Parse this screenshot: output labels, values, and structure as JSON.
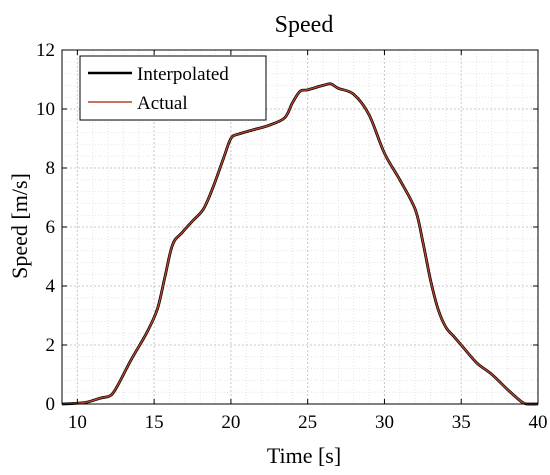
{
  "chart_data": {
    "type": "line",
    "title": "Speed",
    "xlabel": "Time [s]",
    "ylabel": "Speed [m/s]",
    "xlim": [
      9,
      40
    ],
    "ylim": [
      0,
      12
    ],
    "x_ticks": [
      10,
      15,
      20,
      25,
      30,
      35,
      40
    ],
    "y_ticks": [
      0,
      2,
      4,
      6,
      8,
      10,
      12
    ],
    "grid": true,
    "legend_position": "top-left",
    "series": [
      {
        "name": "Interpolated",
        "color": "#000000",
        "x": [
          9,
          10.5,
          11.5,
          12.2,
          12.7,
          13.5,
          14.5,
          15.2,
          15.7,
          16.2,
          16.8,
          17.5,
          18.2,
          18.8,
          19.5,
          20.0,
          20.5,
          21.5,
          22.5,
          23.5,
          24.0,
          24.5,
          25.0,
          26.0,
          26.5,
          27.0,
          28.0,
          29.0,
          30.0,
          31.0,
          32.0,
          32.5,
          33.0,
          33.5,
          34.0,
          34.5,
          35.0,
          36.0,
          37.0,
          38.0,
          39.0,
          39.5,
          40.0
        ],
        "y": [
          0,
          0.05,
          0.2,
          0.3,
          0.7,
          1.5,
          2.4,
          3.2,
          4.3,
          5.4,
          5.8,
          6.2,
          6.6,
          7.3,
          8.3,
          9.0,
          9.15,
          9.3,
          9.45,
          9.7,
          10.2,
          10.6,
          10.65,
          10.8,
          10.85,
          10.7,
          10.5,
          9.8,
          8.5,
          7.6,
          6.6,
          5.5,
          4.2,
          3.2,
          2.6,
          2.3,
          2.0,
          1.4,
          1.0,
          0.5,
          0.05,
          0,
          0
        ]
      },
      {
        "name": "Actual",
        "color": "#b5452a",
        "x": [
          9,
          10.5,
          11.5,
          12.2,
          12.7,
          13.5,
          14.5,
          15.2,
          15.7,
          16.2,
          16.8,
          17.5,
          18.2,
          18.8,
          19.5,
          20.0,
          20.5,
          21.5,
          22.5,
          23.5,
          24.0,
          24.5,
          25.0,
          26.0,
          26.5,
          27.0,
          28.0,
          29.0,
          30.0,
          31.0,
          32.0,
          32.5,
          33.0,
          33.5,
          34.0,
          34.5,
          35.0,
          36.0,
          37.0,
          38.0,
          39.0,
          39.5,
          40.0
        ],
        "y": [
          0,
          0.05,
          0.2,
          0.3,
          0.7,
          1.5,
          2.4,
          3.2,
          4.3,
          5.4,
          5.8,
          6.2,
          6.6,
          7.3,
          8.3,
          9.0,
          9.15,
          9.3,
          9.45,
          9.7,
          10.2,
          10.6,
          10.65,
          10.8,
          10.85,
          10.7,
          10.5,
          9.8,
          8.5,
          7.6,
          6.6,
          5.5,
          4.2,
          3.2,
          2.6,
          2.3,
          2.0,
          1.4,
          1.0,
          0.5,
          0.05,
          0,
          0
        ]
      }
    ]
  }
}
